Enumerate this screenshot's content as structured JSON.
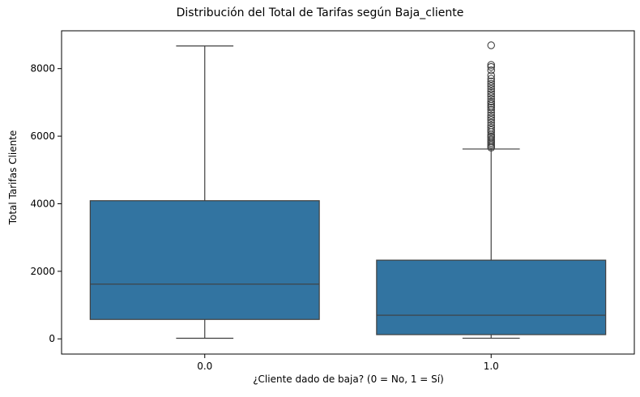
{
  "chart_data": {
    "type": "box",
    "title": "Distribución del Total de Tarifas según Baja_cliente",
    "xlabel": "¿Cliente dado de baja? (0 = No, 1 = Sí)",
    "ylabel": "Total Tarifas Cliente",
    "categories": [
      "0.0",
      "1.0"
    ],
    "ylim": [
      -450,
      9120
    ],
    "yticks": [
      0,
      2000,
      4000,
      6000,
      8000
    ],
    "grid": false,
    "color": "#3274a1",
    "boxes": [
      {
        "category": "0.0",
        "min": 18,
        "q1": 575,
        "median": 1620,
        "q3": 4090,
        "max": 8670,
        "outliers": []
      },
      {
        "category": "1.0",
        "min": 19,
        "q1": 125,
        "median": 700,
        "q3": 2330,
        "max": 5620,
        "outliers": [
          5660,
          5700,
          5750,
          5800,
          5850,
          5900,
          5960,
          6000,
          6050,
          6120,
          6180,
          6250,
          6320,
          6400,
          6480,
          6550,
          6620,
          6700,
          6780,
          6850,
          6900,
          6960,
          7020,
          7100,
          7180,
          7250,
          7320,
          7400,
          7480,
          7550,
          7620,
          7700,
          7800,
          7950,
          8050,
          8110,
          8690
        ]
      }
    ]
  }
}
